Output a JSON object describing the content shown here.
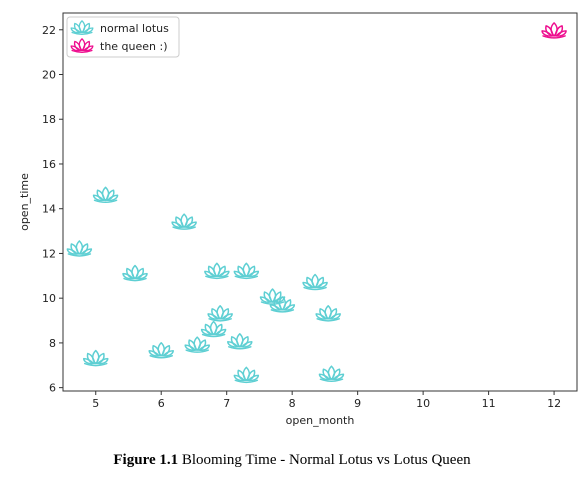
{
  "chart_data": {
    "type": "scatter",
    "xlabel": "open_month",
    "ylabel": "open_time",
    "xlim": [
      4.5,
      12.35
    ],
    "ylim": [
      5.85,
      22.75
    ],
    "xticks": [
      5,
      6,
      7,
      8,
      9,
      10,
      11,
      12
    ],
    "yticks": [
      6,
      8,
      10,
      12,
      14,
      16,
      18,
      20,
      22
    ],
    "grid": false,
    "legend_position": "top-left",
    "series": [
      {
        "name": "normal lotus",
        "color": "#5ecfd3",
        "marker": "lotus-icon",
        "points": [
          {
            "x": 4.75,
            "y": 12.2
          },
          {
            "x": 5.15,
            "y": 14.6
          },
          {
            "x": 5.0,
            "y": 7.3
          },
          {
            "x": 5.6,
            "y": 11.1
          },
          {
            "x": 6.0,
            "y": 7.65
          },
          {
            "x": 6.35,
            "y": 13.4
          },
          {
            "x": 6.55,
            "y": 7.9
          },
          {
            "x": 6.8,
            "y": 8.6
          },
          {
            "x": 6.85,
            "y": 11.2
          },
          {
            "x": 6.9,
            "y": 9.3
          },
          {
            "x": 7.2,
            "y": 8.05
          },
          {
            "x": 7.3,
            "y": 11.2
          },
          {
            "x": 7.3,
            "y": 6.55
          },
          {
            "x": 7.7,
            "y": 10.05
          },
          {
            "x": 7.85,
            "y": 9.7
          },
          {
            "x": 8.35,
            "y": 10.7
          },
          {
            "x": 8.55,
            "y": 9.3
          },
          {
            "x": 8.6,
            "y": 6.6
          }
        ]
      },
      {
        "name": "the queen :)",
        "color": "#ee0f8f",
        "marker": "lotus-icon",
        "points": [
          {
            "x": 12.0,
            "y": 21.95
          }
        ]
      }
    ]
  },
  "caption": {
    "label": "Figure 1.1",
    "text": "Blooming Time - Normal Lotus vs Lotus Queen"
  }
}
